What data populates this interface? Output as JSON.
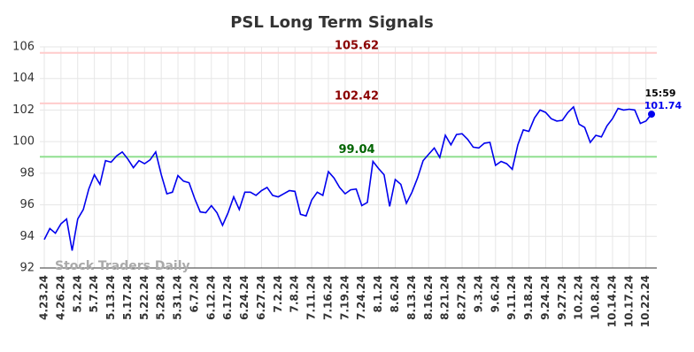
{
  "chart_data": {
    "type": "line",
    "title": "PSL Long Term Signals",
    "categories": [
      "4.23.24",
      null,
      null,
      "4.26.24",
      null,
      null,
      "5.2.24",
      null,
      null,
      "5.7.24",
      null,
      null,
      "5.13.24",
      null,
      null,
      "5.17.24",
      null,
      null,
      "5.22.24",
      null,
      null,
      "5.28.24",
      null,
      null,
      "5.31.24",
      null,
      null,
      "6.7.24",
      null,
      null,
      "6.12.24",
      null,
      null,
      "6.17.24",
      null,
      null,
      "6.24.24",
      null,
      null,
      "6.27.24",
      null,
      null,
      "7.2.24",
      null,
      null,
      "7.8.24",
      null,
      null,
      "7.11.24",
      null,
      null,
      "7.16.24",
      null,
      null,
      "7.19.24",
      null,
      null,
      "7.24.24",
      null,
      null,
      "8.1.24",
      null,
      null,
      "8.6.24",
      null,
      null,
      "8.13.24",
      null,
      null,
      "8.16.24",
      null,
      null,
      "8.21.24",
      null,
      null,
      "8.27.24",
      null,
      null,
      "9.3.24",
      null,
      null,
      "9.6.24",
      null,
      null,
      "9.11.24",
      null,
      null,
      "9.18.24",
      null,
      null,
      "9.24.24",
      null,
      null,
      "9.27.24",
      null,
      null,
      "10.2.24",
      null,
      null,
      "10.8.24",
      null,
      null,
      "10.14.24",
      null,
      null,
      "10.17.24",
      null,
      null,
      "10.22.24",
      null
    ],
    "values": [
      93.8,
      94.5,
      94.2,
      94.8,
      95.1,
      93.1,
      95.1,
      95.7,
      97.0,
      97.9,
      97.3,
      98.8,
      98.7,
      99.1,
      99.35,
      98.9,
      98.35,
      98.8,
      98.6,
      98.85,
      99.35,
      97.9,
      96.7,
      96.8,
      97.85,
      97.5,
      97.4,
      96.4,
      95.55,
      95.5,
      95.95,
      95.5,
      94.7,
      95.5,
      96.5,
      95.7,
      96.8,
      96.8,
      96.6,
      96.9,
      97.1,
      96.6,
      96.5,
      96.7,
      96.9,
      96.85,
      95.4,
      95.3,
      96.3,
      96.8,
      96.6,
      98.1,
      97.7,
      97.1,
      96.7,
      96.95,
      97.0,
      95.95,
      96.15,
      98.75,
      98.3,
      97.9,
      95.9,
      97.6,
      97.3,
      96.1,
      96.8,
      97.7,
      98.8,
      99.2,
      99.6,
      99.0,
      100.4,
      99.8,
      100.45,
      100.5,
      100.15,
      99.65,
      99.6,
      99.9,
      99.95,
      98.5,
      98.75,
      98.6,
      98.25,
      99.8,
      100.75,
      100.65,
      101.5,
      102.0,
      101.85,
      101.45,
      101.3,
      101.35,
      101.85,
      102.2,
      101.1,
      100.9,
      99.95,
      100.4,
      100.3,
      101.0,
      101.45,
      102.1,
      102.0,
      102.05,
      102.0,
      101.15,
      101.3,
      101.74
    ],
    "color": "#0000ee",
    "ylim": [
      92,
      106
    ],
    "yticks": [
      92,
      94,
      96,
      98,
      100,
      102,
      104,
      106
    ],
    "grid": true,
    "hlines": [
      {
        "value": 105.62,
        "color": "#ffcccc",
        "label_color": "#8b0000"
      },
      {
        "value": 102.42,
        "color": "#ffcccc",
        "label_color": "#8b0000"
      },
      {
        "value": 99.04,
        "color": "#90e090",
        "label_color": "#006400"
      }
    ],
    "last_time": "15:59",
    "watermark": "Stock Traders Daily"
  }
}
